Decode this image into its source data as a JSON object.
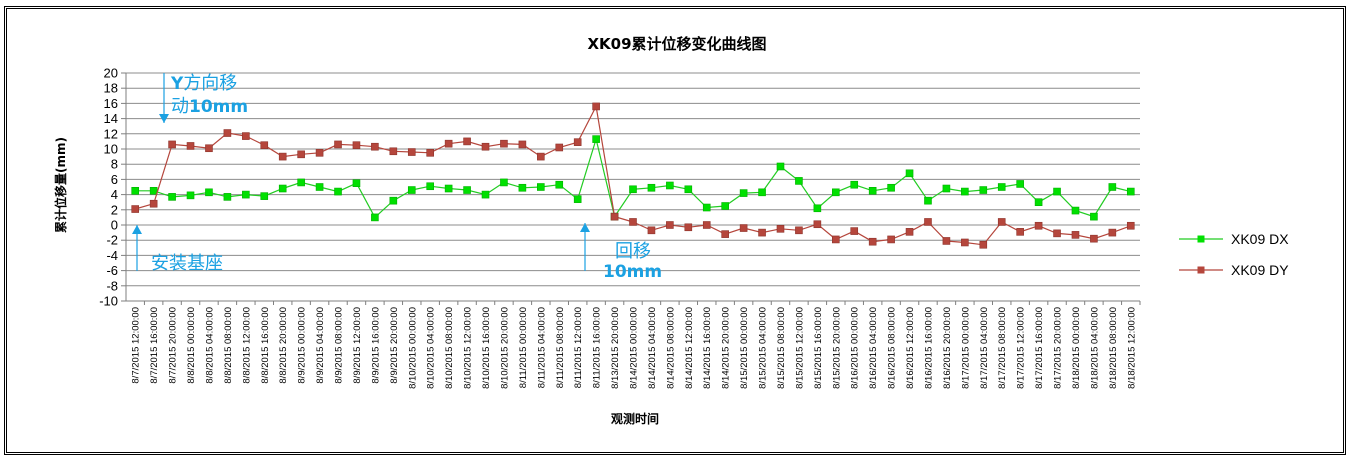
{
  "chart_data": {
    "type": "line",
    "title": "XK09累计位移变化曲线图",
    "xlabel": "观测时间",
    "ylabel": "累计位移量(mm)",
    "ylim": [
      -10,
      20
    ],
    "ytick_step": 2,
    "grid": true,
    "legend_position": "right",
    "categories": [
      "8/7/2015 12:00:00",
      "8/7/2015 16:00:00",
      "8/7/2015 20:00:00",
      "8/8/2015 00:00:00",
      "8/8/2015 04:00:00",
      "8/8/2015 08:00:00",
      "8/8/2015 12:00:00",
      "8/8/2015 16:00:00",
      "8/8/2015 20:00:00",
      "8/9/2015 00:00:00",
      "8/9/2015 04:00:00",
      "8/9/2015 08:00:00",
      "8/9/2015 12:00:00",
      "8/9/2015 16:00:00",
      "8/9/2015 20:00:00",
      "8/10/2015 00:00:00",
      "8/10/2015 04:00:00",
      "8/10/2015 08:00:00",
      "8/10/2015 12:00:00",
      "8/10/2015 16:00:00",
      "8/10/2015 20:00:00",
      "8/11/2015 00:00:00",
      "8/11/2015 04:00:00",
      "8/11/2015 08:00:00",
      "8/11/2015 12:00:00",
      "8/11/2015 16:00:00",
      "8/13/2015 20:00:00",
      "8/14/2015 00:00:00",
      "8/14/2015 04:00:00",
      "8/14/2015 08:00:00",
      "8/14/2015 12:00:00",
      "8/14/2015 16:00:00",
      "8/14/2015 20:00:00",
      "8/15/2015 00:00:00",
      "8/15/2015 04:00:00",
      "8/15/2015 08:00:00",
      "8/15/2015 12:00:00",
      "8/15/2015 16:00:00",
      "8/15/2015 20:00:00",
      "8/16/2015 00:00:00",
      "8/16/2015 04:00:00",
      "8/16/2015 08:00:00",
      "8/16/2015 12:00:00",
      "8/16/2015 16:00:00",
      "8/16/2015 20:00:00",
      "8/17/2015 00:00:00",
      "8/17/2015 04:00:00",
      "8/17/2015 08:00:00",
      "8/17/2015 12:00:00",
      "8/17/2015 16:00:00",
      "8/17/2015 20:00:00",
      "8/18/2015 00:00:00",
      "8/18/2015 04:00:00",
      "8/18/2015 08:00:00",
      "8/18/2015 12:00:00"
    ],
    "series": [
      {
        "name": "XK09 DX",
        "color": "#00E000",
        "line_color": "#22CC22",
        "marker": "square",
        "values": [
          4.5,
          4.5,
          3.7,
          3.9,
          4.3,
          3.7,
          4.0,
          3.8,
          4.8,
          5.6,
          5.0,
          4.4,
          5.5,
          1.0,
          3.2,
          4.6,
          5.1,
          4.8,
          4.6,
          4.0,
          5.6,
          4.9,
          5.0,
          5.3,
          3.4,
          11.3,
          1.1,
          4.7,
          4.9,
          5.2,
          4.7,
          2.3,
          2.5,
          4.2,
          4.3,
          7.7,
          5.8,
          2.2,
          4.3,
          5.3,
          4.5,
          4.9,
          6.8,
          3.2,
          4.8,
          4.4,
          4.6,
          5.0,
          5.4,
          3.0,
          4.4,
          1.9,
          1.1,
          5.0,
          4.4
        ]
      },
      {
        "name": "XK09 DY",
        "color": "#B5463C",
        "line_color": "#B5463C",
        "marker": "square",
        "values": [
          2.1,
          2.8,
          10.6,
          10.4,
          10.1,
          12.1,
          11.7,
          10.5,
          9.0,
          9.3,
          9.5,
          10.6,
          10.5,
          10.3,
          9.7,
          9.6,
          9.5,
          10.7,
          11.0,
          10.3,
          10.7,
          10.6,
          9.0,
          10.2,
          10.9,
          15.6,
          1.1,
          0.4,
          -0.7,
          0.0,
          -0.3,
          0.0,
          -1.2,
          -0.4,
          -1.0,
          -0.5,
          -0.7,
          0.1,
          -1.9,
          -0.8,
          -2.2,
          -1.9,
          -0.9,
          0.4,
          -2.1,
          -2.3,
          -2.6,
          0.4,
          -0.9,
          -0.1,
          -1.1,
          -1.3,
          -1.8,
          -1.0,
          -0.1
        ]
      }
    ],
    "annotations": [
      {
        "lines": [
          "Y方向移",
          "动10mm"
        ],
        "bold_suffix": "10mm",
        "arrow": "down",
        "x_index": 1
      },
      {
        "lines": [
          "安装基座"
        ],
        "arrow": "up",
        "x_index": 0
      },
      {
        "lines": [
          "回移",
          "10mm"
        ],
        "arrow": "up",
        "x_index": 25
      }
    ]
  }
}
